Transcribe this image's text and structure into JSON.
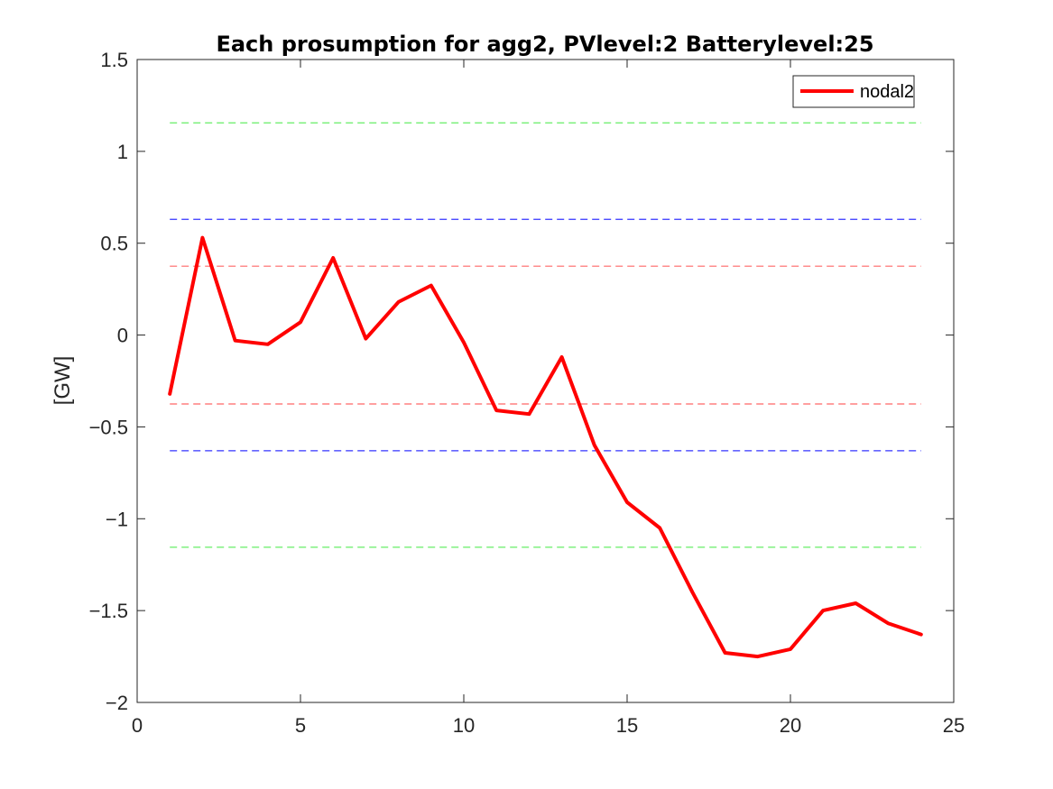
{
  "chart_data": {
    "type": "line",
    "title": "Each prosumption for agg2, PVlevel:2 Batterylevel:25",
    "xlabel": "",
    "ylabel": "[GW]",
    "xlim": [
      0,
      25
    ],
    "ylim": [
      -2,
      1.5
    ],
    "xticks": [
      0,
      5,
      10,
      15,
      20,
      25
    ],
    "yticks": [
      -2,
      -1.5,
      -1,
      -0.5,
      0,
      0.5,
      1,
      1.5
    ],
    "xtick_labels": [
      "0",
      "5",
      "10",
      "15",
      "20",
      "25"
    ],
    "ytick_labels": [
      "−2",
      "−1.5",
      "−1",
      "−0.5",
      "0",
      "0.5",
      "1",
      "1.5"
    ],
    "grid": false,
    "legend_position": "top-right",
    "series": [
      {
        "name": "nodal2",
        "color": "#ff0000",
        "style": "solid",
        "x": [
          1,
          2,
          3,
          4,
          5,
          6,
          7,
          8,
          9,
          10,
          11,
          12,
          13,
          14,
          15,
          16,
          17,
          18,
          19,
          20,
          21,
          22,
          23,
          24
        ],
        "y": [
          -0.32,
          0.53,
          -0.03,
          -0.05,
          0.07,
          0.42,
          -0.02,
          0.18,
          0.27,
          -0.04,
          -0.41,
          -0.43,
          -0.12,
          -0.6,
          -0.91,
          -1.05,
          -1.4,
          -1.73,
          -1.75,
          -1.71,
          -1.5,
          -1.46,
          -1.57,
          -1.63
        ]
      }
    ],
    "reference_lines": [
      {
        "y": 1.155,
        "x": [
          1,
          24
        ],
        "color": "#66ee66",
        "style": "dashed"
      },
      {
        "y": 0.63,
        "x": [
          1,
          24
        ],
        "color": "#3333ff",
        "style": "dashed"
      },
      {
        "y": 0.375,
        "x": [
          1,
          24
        ],
        "color": "#ff6666",
        "style": "dashed"
      },
      {
        "y": -0.375,
        "x": [
          1,
          24
        ],
        "color": "#ff6666",
        "style": "dashed"
      },
      {
        "y": -0.63,
        "x": [
          1,
          24
        ],
        "color": "#3333ff",
        "style": "dashed"
      },
      {
        "y": -1.155,
        "x": [
          1,
          24
        ],
        "color": "#66ee66",
        "style": "dashed"
      }
    ]
  }
}
